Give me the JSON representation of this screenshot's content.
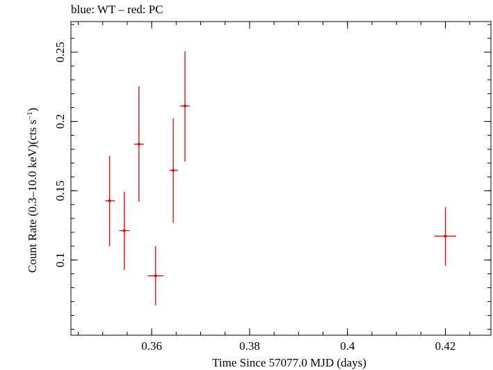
{
  "title": "blue: WT – red: PC",
  "chart_data": {
    "type": "scatter",
    "title": "blue: WT – red: PC",
    "xlabel": "Time Since 57077.0 MJD (days)",
    "ylabel_main": "Count Rate (0.3–10.0 keV)(cts s",
    "ylabel_sup": "−1",
    "ylabel_end": ")",
    "xlim": [
      0.3435,
      0.4293
    ],
    "ylim": [
      0.0457,
      0.2721
    ],
    "xticks": [
      {
        "value": 0.36,
        "label": "0.36"
      },
      {
        "value": 0.38,
        "label": "0.38"
      },
      {
        "value": 0.4,
        "label": "0.4"
      },
      {
        "value": 0.42,
        "label": "0.42"
      }
    ],
    "yticks": [
      {
        "value": 0.1,
        "label": "0.1"
      },
      {
        "value": 0.15,
        "label": "0.15"
      },
      {
        "value": 0.2,
        "label": "0.2"
      },
      {
        "value": 0.25,
        "label": "0.25"
      }
    ],
    "series": [
      {
        "color": "#ee0000",
        "points": [
          {
            "x": 0.3514,
            "xerr": [
              0.3505,
              0.3525
            ],
            "y": 0.1427,
            "yerr": [
              0.1099,
              0.1753
            ]
          },
          {
            "x": 0.3544,
            "xerr": [
              0.3534,
              0.3555
            ],
            "y": 0.1212,
            "yerr": [
              0.0929,
              0.1492
            ]
          },
          {
            "x": 0.3574,
            "xerr": [
              0.3564,
              0.3584
            ],
            "y": 0.1836,
            "yerr": [
              0.1421,
              0.2253
            ]
          },
          {
            "x": 0.3608,
            "xerr": [
              0.3592,
              0.3624
            ],
            "y": 0.0886,
            "yerr": [
              0.0673,
              0.11
            ]
          },
          {
            "x": 0.3644,
            "xerr": [
              0.3636,
              0.3654
            ],
            "y": 0.1647,
            "yerr": [
              0.1268,
              0.2023
            ]
          },
          {
            "x": 0.3668,
            "xerr": [
              0.3658,
              0.3678
            ],
            "y": 0.2112,
            "yerr": [
              0.171,
              0.2506
            ]
          },
          {
            "x": 0.42,
            "xerr": [
              0.4178,
              0.4222
            ],
            "y": 0.1172,
            "yerr": [
              0.0958,
              0.1381
            ]
          }
        ]
      }
    ]
  }
}
